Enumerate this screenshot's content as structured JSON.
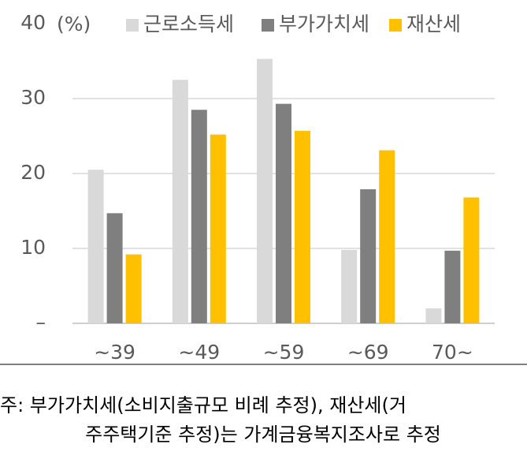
{
  "chart_data": {
    "type": "bar",
    "y_label": "(%)",
    "categories": [
      "~39",
      "~49",
      "~59",
      "~69",
      "70~"
    ],
    "series": [
      {
        "name": "근로소득세",
        "color": "#d9d9d9",
        "values": [
          20.5,
          32.5,
          35.3,
          9.8,
          2.0
        ]
      },
      {
        "name": "부가가치세",
        "color": "#7f7f7f",
        "values": [
          14.7,
          28.5,
          29.3,
          17.9,
          9.7
        ]
      },
      {
        "name": "재산세",
        "color": "#ffc000",
        "values": [
          9.2,
          25.2,
          25.7,
          23.1,
          16.8
        ]
      }
    ],
    "ylim": [
      0,
      40
    ],
    "yticks": [
      {
        "value": 0,
        "label": "–"
      },
      10,
      20,
      30,
      40
    ],
    "grid": true,
    "legend": "top",
    "note": [
      "주: 부가가치세(소비지출규모 비례 추정), 재산세(거",
      "주주택기준 추정)는 가계금융복지조사로 추정"
    ]
  }
}
